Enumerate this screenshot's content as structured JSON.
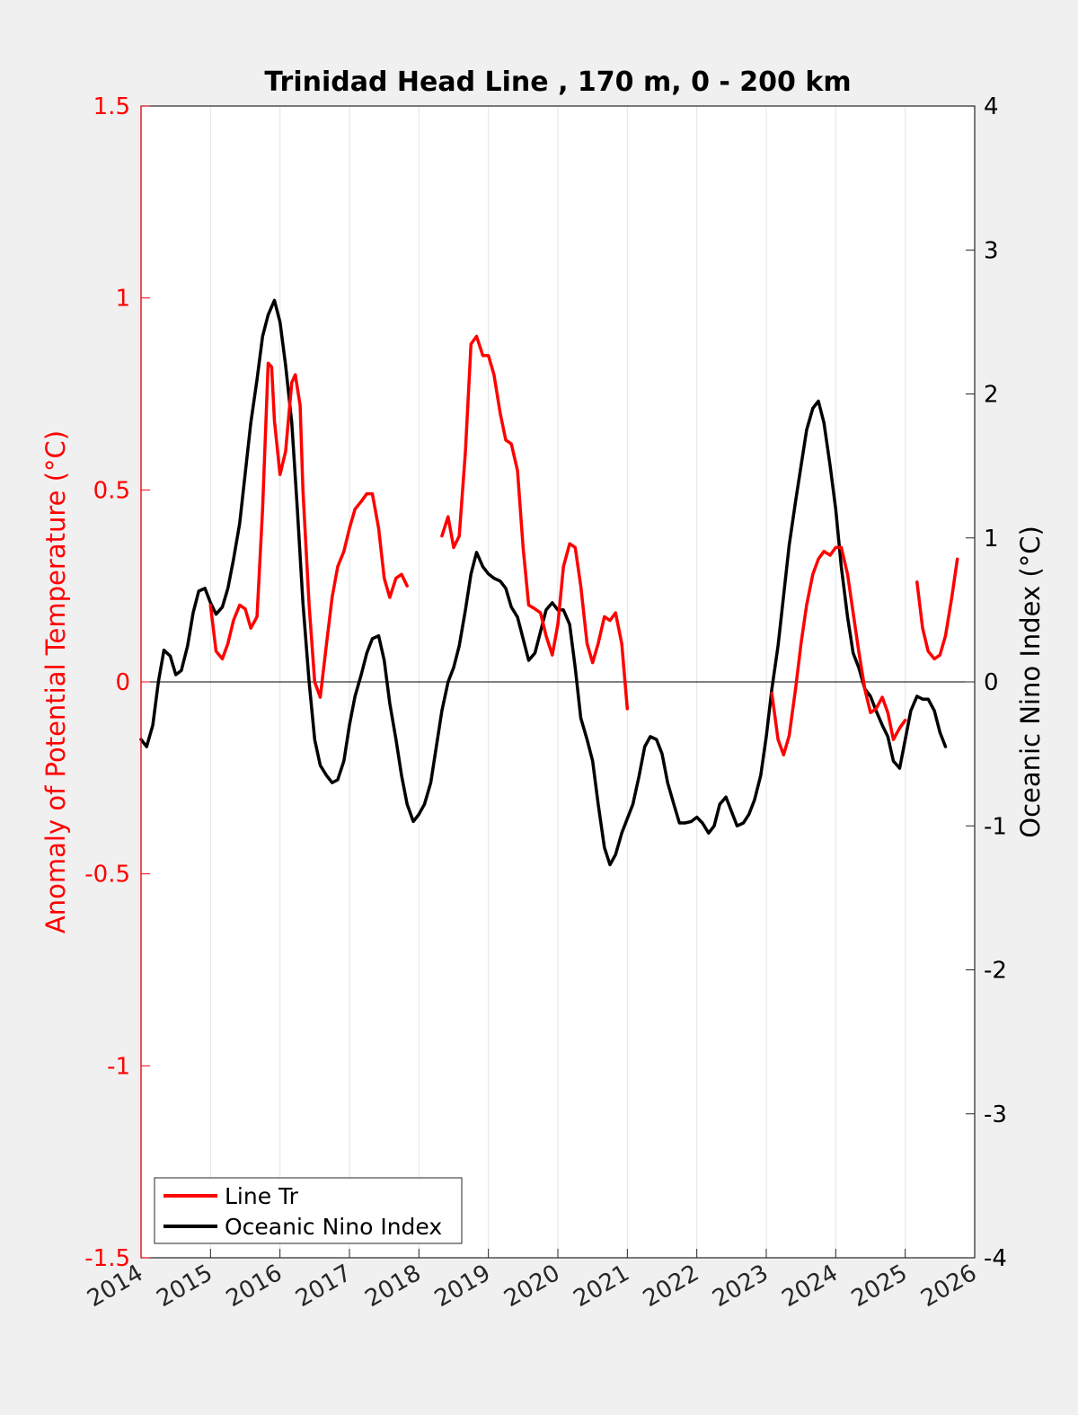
{
  "chart_data": {
    "type": "line",
    "title": "Trinidad Head Line , 170 m, 0 - 200 km",
    "xlabel": "",
    "ylabel_left": "Anomaly of Potential Temperature (°C)",
    "ylabel_right": "Oceanic Nino Index (°C)",
    "xlim": [
      2014,
      2026
    ],
    "ylim_left": [
      -1.5,
      1.5
    ],
    "ylim_right": [
      -4,
      4
    ],
    "x_ticks": [
      2014,
      2015,
      2016,
      2017,
      2018,
      2019,
      2020,
      2021,
      2022,
      2023,
      2024,
      2025,
      2026
    ],
    "x_tick_labels": [
      "2014",
      "2015",
      "2016",
      "2017",
      "2018",
      "2019",
      "2020",
      "2021",
      "2022",
      "2023",
      "2024",
      "2025",
      "2026"
    ],
    "y_left_ticks": [
      -1.5,
      -1,
      -0.5,
      0,
      0.5,
      1,
      1.5
    ],
    "y_left_tick_labels": [
      "-1.5",
      "-1",
      "-0.5",
      "0",
      "0.5",
      "1",
      "1.5"
    ],
    "y_right_ticks": [
      -4,
      -3,
      -2,
      -1,
      0,
      1,
      2,
      3,
      4
    ],
    "y_right_tick_labels": [
      "-4",
      "-3",
      "-2",
      "-1",
      "0",
      "1",
      "2",
      "3",
      "4"
    ],
    "grid": "vertical",
    "legend_position": "bottom-left",
    "colors": {
      "line_tr": "#ff0000",
      "oni": "#000000",
      "left_axis": "#ff0000",
      "right_axis": "#000000"
    },
    "series": [
      {
        "name": "Line Tr",
        "axis": "left",
        "segments": [
          [
            [
              2015.0,
              0.2
            ],
            [
              2015.08,
              0.08
            ],
            [
              2015.17,
              0.06
            ],
            [
              2015.25,
              0.1
            ],
            [
              2015.33,
              0.16
            ],
            [
              2015.42,
              0.2
            ],
            [
              2015.5,
              0.19
            ],
            [
              2015.58,
              0.14
            ],
            [
              2015.67,
              0.17
            ],
            [
              2015.75,
              0.45
            ],
            [
              2015.83,
              0.83
            ],
            [
              2015.88,
              0.82
            ],
            [
              2015.92,
              0.68
            ],
            [
              2016.0,
              0.54
            ],
            [
              2016.08,
              0.6
            ],
            [
              2016.17,
              0.78
            ],
            [
              2016.22,
              0.8
            ],
            [
              2016.29,
              0.72
            ],
            [
              2016.33,
              0.5
            ],
            [
              2016.42,
              0.2
            ],
            [
              2016.5,
              0.0
            ],
            [
              2016.58,
              -0.04
            ],
            [
              2016.67,
              0.1
            ],
            [
              2016.75,
              0.22
            ],
            [
              2016.83,
              0.3
            ],
            [
              2016.92,
              0.34
            ],
            [
              2017.0,
              0.4
            ],
            [
              2017.08,
              0.45
            ],
            [
              2017.17,
              0.47
            ],
            [
              2017.25,
              0.49
            ],
            [
              2017.33,
              0.49
            ],
            [
              2017.42,
              0.4
            ],
            [
              2017.5,
              0.27
            ],
            [
              2017.58,
              0.22
            ],
            [
              2017.67,
              0.27
            ],
            [
              2017.75,
              0.28
            ],
            [
              2017.83,
              0.25
            ]
          ],
          [
            [
              2018.33,
              0.38
            ],
            [
              2018.42,
              0.43
            ],
            [
              2018.5,
              0.35
            ],
            [
              2018.58,
              0.38
            ],
            [
              2018.67,
              0.6
            ],
            [
              2018.75,
              0.88
            ],
            [
              2018.83,
              0.9
            ],
            [
              2018.92,
              0.85
            ],
            [
              2019.0,
              0.85
            ],
            [
              2019.08,
              0.8
            ],
            [
              2019.17,
              0.7
            ],
            [
              2019.25,
              0.63
            ],
            [
              2019.33,
              0.62
            ],
            [
              2019.42,
              0.55
            ],
            [
              2019.5,
              0.35
            ],
            [
              2019.58,
              0.2
            ],
            [
              2019.67,
              0.19
            ],
            [
              2019.75,
              0.18
            ],
            [
              2019.83,
              0.12
            ],
            [
              2019.92,
              0.07
            ],
            [
              2020.0,
              0.15
            ],
            [
              2020.08,
              0.3
            ],
            [
              2020.17,
              0.36
            ],
            [
              2020.25,
              0.35
            ],
            [
              2020.33,
              0.25
            ],
            [
              2020.42,
              0.1
            ],
            [
              2020.5,
              0.05
            ],
            [
              2020.58,
              0.1
            ],
            [
              2020.67,
              0.17
            ],
            [
              2020.75,
              0.16
            ],
            [
              2020.83,
              0.18
            ],
            [
              2020.92,
              0.1
            ],
            [
              2021.0,
              -0.07
            ]
          ],
          [
            [
              2023.08,
              -0.03
            ],
            [
              2023.17,
              -0.15
            ],
            [
              2023.25,
              -0.19
            ],
            [
              2023.33,
              -0.14
            ],
            [
              2023.42,
              -0.02
            ],
            [
              2023.5,
              0.1
            ],
            [
              2023.58,
              0.2
            ],
            [
              2023.67,
              0.28
            ],
            [
              2023.75,
              0.32
            ],
            [
              2023.83,
              0.34
            ],
            [
              2023.92,
              0.33
            ],
            [
              2024.0,
              0.35
            ],
            [
              2024.08,
              0.35
            ],
            [
              2024.17,
              0.28
            ],
            [
              2024.25,
              0.18
            ],
            [
              2024.33,
              0.08
            ],
            [
              2024.42,
              -0.02
            ],
            [
              2024.5,
              -0.08
            ],
            [
              2024.58,
              -0.07
            ],
            [
              2024.67,
              -0.04
            ],
            [
              2024.75,
              -0.08
            ],
            [
              2024.83,
              -0.15
            ],
            [
              2024.92,
              -0.12
            ],
            [
              2025.0,
              -0.1
            ]
          ],
          [
            [
              2025.17,
              0.26
            ],
            [
              2025.25,
              0.14
            ],
            [
              2025.33,
              0.08
            ],
            [
              2025.42,
              0.06
            ],
            [
              2025.5,
              0.07
            ],
            [
              2025.58,
              0.12
            ],
            [
              2025.67,
              0.22
            ],
            [
              2025.75,
              0.32
            ]
          ]
        ]
      },
      {
        "name": "Oceanic Nino Index",
        "axis": "right",
        "values": [
          [
            2014.0,
            -0.4
          ],
          [
            2014.08,
            -0.45
          ],
          [
            2014.17,
            -0.3
          ],
          [
            2014.25,
            0.0
          ],
          [
            2014.33,
            0.22
          ],
          [
            2014.42,
            0.18
          ],
          [
            2014.5,
            0.05
          ],
          [
            2014.58,
            0.08
          ],
          [
            2014.67,
            0.25
          ],
          [
            2014.75,
            0.48
          ],
          [
            2014.83,
            0.63
          ],
          [
            2014.92,
            0.65
          ],
          [
            2015.0,
            0.55
          ],
          [
            2015.08,
            0.47
          ],
          [
            2015.17,
            0.52
          ],
          [
            2015.25,
            0.65
          ],
          [
            2015.33,
            0.85
          ],
          [
            2015.42,
            1.1
          ],
          [
            2015.5,
            1.45
          ],
          [
            2015.58,
            1.8
          ],
          [
            2015.67,
            2.1
          ],
          [
            2015.75,
            2.4
          ],
          [
            2015.83,
            2.55
          ],
          [
            2015.92,
            2.65
          ],
          [
            2016.0,
            2.5
          ],
          [
            2016.08,
            2.2
          ],
          [
            2016.17,
            1.8
          ],
          [
            2016.25,
            1.2
          ],
          [
            2016.33,
            0.55
          ],
          [
            2016.42,
            0.0
          ],
          [
            2016.5,
            -0.4
          ],
          [
            2016.58,
            -0.58
          ],
          [
            2016.67,
            -0.65
          ],
          [
            2016.75,
            -0.7
          ],
          [
            2016.83,
            -0.68
          ],
          [
            2016.92,
            -0.55
          ],
          [
            2017.0,
            -0.3
          ],
          [
            2017.08,
            -0.1
          ],
          [
            2017.17,
            0.05
          ],
          [
            2017.25,
            0.2
          ],
          [
            2017.33,
            0.3
          ],
          [
            2017.42,
            0.32
          ],
          [
            2017.5,
            0.15
          ],
          [
            2017.58,
            -0.15
          ],
          [
            2017.67,
            -0.4
          ],
          [
            2017.75,
            -0.65
          ],
          [
            2017.83,
            -0.85
          ],
          [
            2017.92,
            -0.97
          ],
          [
            2018.0,
            -0.92
          ],
          [
            2018.08,
            -0.85
          ],
          [
            2018.17,
            -0.7
          ],
          [
            2018.25,
            -0.45
          ],
          [
            2018.33,
            -0.2
          ],
          [
            2018.42,
            0.0
          ],
          [
            2018.5,
            0.1
          ],
          [
            2018.58,
            0.25
          ],
          [
            2018.67,
            0.5
          ],
          [
            2018.75,
            0.75
          ],
          [
            2018.83,
            0.9
          ],
          [
            2018.92,
            0.8
          ],
          [
            2019.0,
            0.75
          ],
          [
            2019.08,
            0.72
          ],
          [
            2019.17,
            0.7
          ],
          [
            2019.25,
            0.65
          ],
          [
            2019.33,
            0.52
          ],
          [
            2019.42,
            0.45
          ],
          [
            2019.5,
            0.3
          ],
          [
            2019.58,
            0.15
          ],
          [
            2019.67,
            0.2
          ],
          [
            2019.75,
            0.35
          ],
          [
            2019.83,
            0.5
          ],
          [
            2019.92,
            0.55
          ],
          [
            2020.0,
            0.5
          ],
          [
            2020.08,
            0.5
          ],
          [
            2020.17,
            0.4
          ],
          [
            2020.25,
            0.1
          ],
          [
            2020.33,
            -0.25
          ],
          [
            2020.42,
            -0.4
          ],
          [
            2020.5,
            -0.55
          ],
          [
            2020.58,
            -0.85
          ],
          [
            2020.67,
            -1.15
          ],
          [
            2020.75,
            -1.27
          ],
          [
            2020.83,
            -1.2
          ],
          [
            2020.92,
            -1.05
          ],
          [
            2021.0,
            -0.95
          ],
          [
            2021.08,
            -0.85
          ],
          [
            2021.17,
            -0.65
          ],
          [
            2021.25,
            -0.45
          ],
          [
            2021.33,
            -0.38
          ],
          [
            2021.42,
            -0.4
          ],
          [
            2021.5,
            -0.5
          ],
          [
            2021.58,
            -0.7
          ],
          [
            2021.67,
            -0.85
          ],
          [
            2021.75,
            -0.98
          ],
          [
            2021.83,
            -0.98
          ],
          [
            2021.92,
            -0.97
          ],
          [
            2022.0,
            -0.94
          ],
          [
            2022.08,
            -0.98
          ],
          [
            2022.17,
            -1.05
          ],
          [
            2022.25,
            -1.0
          ],
          [
            2022.33,
            -0.85
          ],
          [
            2022.42,
            -0.8
          ],
          [
            2022.5,
            -0.9
          ],
          [
            2022.58,
            -1.0
          ],
          [
            2022.67,
            -0.98
          ],
          [
            2022.75,
            -0.92
          ],
          [
            2022.83,
            -0.82
          ],
          [
            2022.92,
            -0.65
          ],
          [
            2023.0,
            -0.38
          ],
          [
            2023.08,
            -0.05
          ],
          [
            2023.17,
            0.25
          ],
          [
            2023.25,
            0.6
          ],
          [
            2023.33,
            0.95
          ],
          [
            2023.42,
            1.25
          ],
          [
            2023.5,
            1.5
          ],
          [
            2023.58,
            1.75
          ],
          [
            2023.67,
            1.9
          ],
          [
            2023.75,
            1.95
          ],
          [
            2023.83,
            1.8
          ],
          [
            2023.92,
            1.5
          ],
          [
            2024.0,
            1.2
          ],
          [
            2024.08,
            0.8
          ],
          [
            2024.17,
            0.45
          ],
          [
            2024.25,
            0.2
          ],
          [
            2024.33,
            0.1
          ],
          [
            2024.42,
            -0.05
          ],
          [
            2024.5,
            -0.1
          ],
          [
            2024.58,
            -0.2
          ],
          [
            2024.67,
            -0.3
          ],
          [
            2024.75,
            -0.38
          ],
          [
            2024.83,
            -0.55
          ],
          [
            2024.92,
            -0.6
          ],
          [
            2025.0,
            -0.4
          ],
          [
            2025.08,
            -0.2
          ],
          [
            2025.17,
            -0.1
          ],
          [
            2025.25,
            -0.12
          ],
          [
            2025.33,
            -0.12
          ],
          [
            2025.42,
            -0.2
          ],
          [
            2025.5,
            -0.35
          ],
          [
            2025.58,
            -0.45
          ]
        ]
      }
    ]
  }
}
